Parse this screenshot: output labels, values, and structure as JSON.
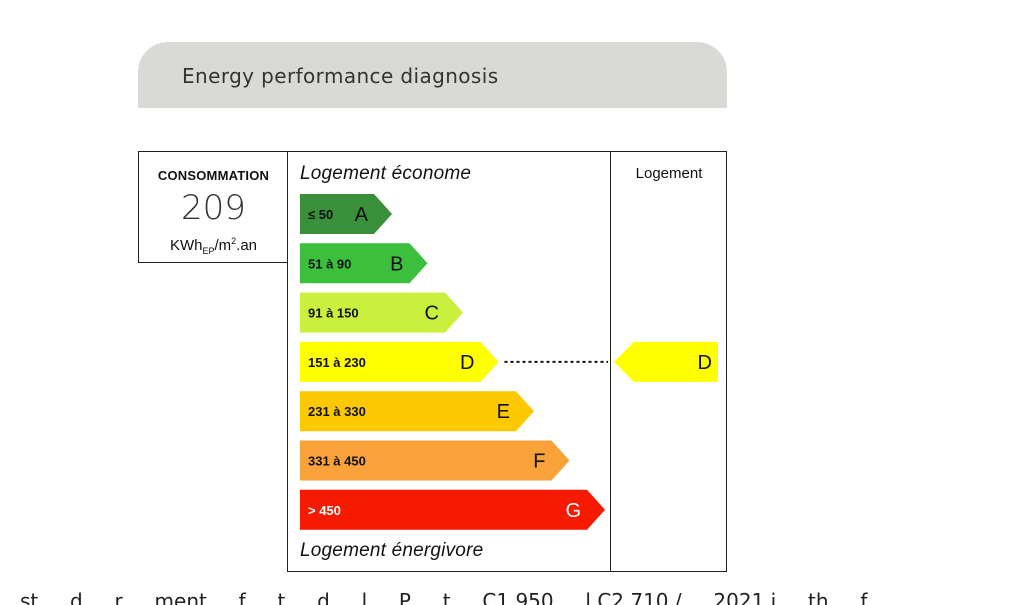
{
  "header": {
    "title": "Energy performance diagnosis"
  },
  "consumption": {
    "label": "CONSOMMATION",
    "value": "209",
    "unit_main": "KWh",
    "unit_sub": "EP",
    "unit_rest": "/m",
    "unit_sup": "2",
    "unit_tail": ".an"
  },
  "labels": {
    "top": "Logement économe",
    "bottom": "Logement énergivore",
    "column": "Logement"
  },
  "chart_data": {
    "type": "bar",
    "categories": [
      "A",
      "B",
      "C",
      "D",
      "E",
      "F",
      "G"
    ],
    "ranges": [
      "≤ 50",
      "51 à 90",
      "91 à 150",
      "151 à 230",
      "231 à 330",
      "331 à 450",
      "> 450"
    ],
    "values": [
      1,
      2,
      3,
      4,
      5,
      6,
      7
    ],
    "colors": [
      "#3a8f3a",
      "#3cbf3c",
      "#c8f03c",
      "#ffff00",
      "#fcc800",
      "#f9a23a",
      "#f51a00"
    ],
    "selected": "D",
    "selected_value": 209
  },
  "footer_text": "st ... d ... r ... ment ... f ... t ... d ... l ... P ... t ... C1 950 ... l C2 710 / ... 2021 i ... th ... f"
}
